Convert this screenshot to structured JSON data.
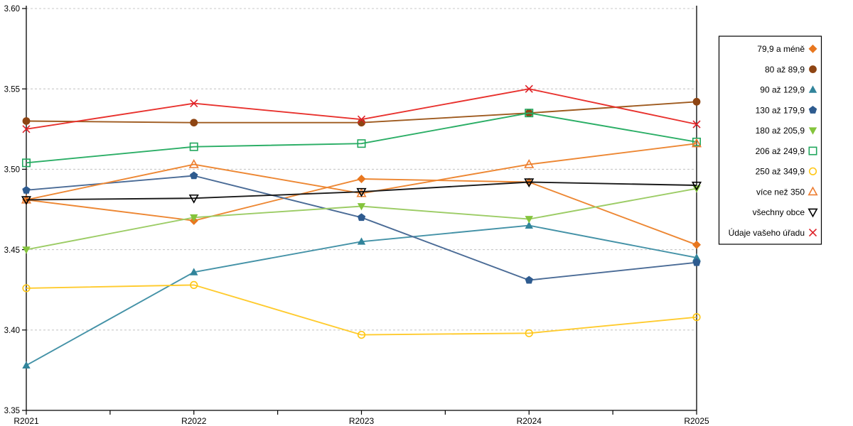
{
  "chart_data": {
    "type": "line",
    "title": "",
    "xlabel": "",
    "ylabel": "",
    "x_categories": [
      "R2021",
      "R2022",
      "R2023",
      "R2024",
      "R2025"
    ],
    "ylim": [
      3.35,
      3.6
    ],
    "y_ticks": [
      3.35,
      3.4,
      3.45,
      3.5,
      3.55,
      3.6
    ],
    "y_tick_labels": [
      "3.35",
      "3.40",
      "3.45",
      "3.50",
      "3.55",
      "3.60"
    ],
    "grid": "horizontal-dashed",
    "x_minor_ticks": "midpoints",
    "legend_position": "right",
    "series": [
      {
        "name": "79,9 a méně",
        "marker": "diamond",
        "marker_style": "filled",
        "color": "#E8771F",
        "line_color": "#ED8733",
        "values": [
          3.481,
          3.468,
          3.494,
          3.492,
          3.453
        ]
      },
      {
        "name": "80 až 89,9",
        "marker": "circle",
        "marker_style": "filled",
        "color": "#8E4513",
        "line_color": "#9E5A1F",
        "values": [
          3.53,
          3.529,
          3.529,
          3.535,
          3.542
        ]
      },
      {
        "name": "90 až 129,9",
        "marker": "triangle-up",
        "marker_style": "filled",
        "color": "#31849B",
        "line_color": "#4492A7",
        "values": [
          3.378,
          3.436,
          3.455,
          3.465,
          3.445
        ]
      },
      {
        "name": "130 až 179,9",
        "marker": "pentagon",
        "marker_style": "filled",
        "color": "#2E5B8F",
        "line_color": "#4A6B96",
        "values": [
          3.487,
          3.496,
          3.47,
          3.431,
          3.442
        ]
      },
      {
        "name": "180 až 205,9",
        "marker": "triangle-down",
        "marker_style": "filled",
        "color": "#84C43C",
        "line_color": "#9CCC65",
        "values": [
          3.45,
          3.47,
          3.477,
          3.469,
          3.488
        ]
      },
      {
        "name": "206 až 249,9",
        "marker": "square",
        "marker_style": "open",
        "color": "#21A75D",
        "line_color": "#2BAE66",
        "values": [
          3.504,
          3.514,
          3.516,
          3.535,
          3.517
        ]
      },
      {
        "name": "250 až 349,9",
        "marker": "circle",
        "marker_style": "open",
        "color": "#FFC613",
        "line_color": "#FFCB2E",
        "values": [
          3.426,
          3.428,
          3.397,
          3.398,
          3.408
        ]
      },
      {
        "name": "více než 350",
        "marker": "triangle-up",
        "marker_style": "open",
        "color": "#ED7D31",
        "line_color": "#ED8733",
        "values": [
          3.481,
          3.503,
          3.485,
          3.503,
          3.516
        ]
      },
      {
        "name": "všechny obce",
        "marker": "triangle-down",
        "marker_style": "open",
        "color": "#000000",
        "line_color": "#1A1A1A",
        "values": [
          3.481,
          3.482,
          3.486,
          3.492,
          3.49
        ]
      },
      {
        "name": "Údaje vašeho úřadu",
        "marker": "x",
        "marker_style": "open",
        "color": "#DD2027",
        "line_color": "#E8322E",
        "values": [
          3.525,
          3.541,
          3.531,
          3.55,
          3.528
        ]
      }
    ]
  },
  "colors": {
    "background": "#FFFFFF",
    "grid": "#C8C8C8",
    "axis": "#000000",
    "legend_border": "#000000",
    "legend_background": "#FFFFFF"
  }
}
